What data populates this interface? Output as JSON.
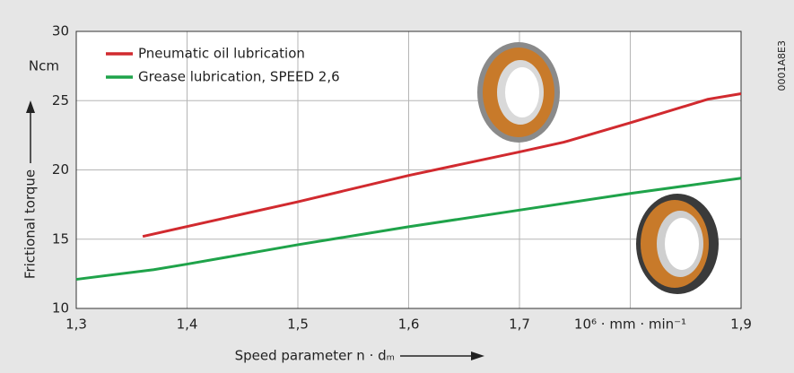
{
  "chart_data": {
    "type": "line",
    "y_label": "Frictional torque",
    "y_unit": "Ncm",
    "x_label": "Speed parameter n · dₘ",
    "code": "0001A8E3",
    "xlim": [
      1.3,
      1.9
    ],
    "xticks": [
      {
        "value": 1.3,
        "label": "1,3"
      },
      {
        "value": 1.4,
        "label": "1,4"
      },
      {
        "value": 1.5,
        "label": "1,5"
      },
      {
        "value": 1.6,
        "label": "1,6"
      },
      {
        "value": 1.7,
        "label": "1,7"
      },
      {
        "value": 1.8,
        "label": "10⁶ · mm · min⁻¹"
      },
      {
        "value": 1.9,
        "label": "1,9"
      }
    ],
    "ylim": [
      10,
      30
    ],
    "yticks": [
      10,
      15,
      20,
      25,
      30
    ],
    "grid": true,
    "legend": "upper left",
    "series": [
      {
        "name": "Pneumatic oil lubrication",
        "color": "#d12a2f",
        "x": [
          1.36,
          1.5,
          1.6,
          1.7,
          1.74,
          1.8,
          1.87,
          1.9
        ],
        "values": [
          15.2,
          17.7,
          19.6,
          21.3,
          22.0,
          23.4,
          25.1,
          25.5
        ]
      },
      {
        "name": "Grease lubrication, SPEED 2,6",
        "color": "#1fa34a",
        "x": [
          1.3,
          1.37,
          1.4,
          1.5,
          1.6,
          1.7,
          1.8,
          1.9
        ],
        "values": [
          12.1,
          12.8,
          13.2,
          14.6,
          15.9,
          17.1,
          18.3,
          19.4
        ]
      }
    ]
  }
}
